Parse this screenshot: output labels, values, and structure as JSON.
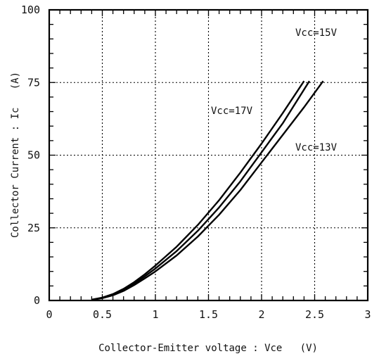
{
  "chart_data": {
    "type": "line",
    "title": "",
    "xlabel": "Collector-Emitter voltage : Vce   (V)",
    "ylabel": "Collector Current : Ic   (A)",
    "xlim": [
      0,
      3
    ],
    "ylim": [
      0,
      100
    ],
    "x_ticks": [
      "0",
      "0.5",
      "1",
      "1.5",
      "2",
      "2.5",
      "3"
    ],
    "y_ticks": [
      "0",
      "25",
      "50",
      "75",
      "100"
    ],
    "grid": true,
    "series": [
      {
        "name": "Vcc=17V",
        "x": [
          0.4,
          0.5,
          0.6,
          0.7,
          0.8,
          0.9,
          1.0,
          1.2,
          1.4,
          1.6,
          1.8,
          2.0,
          2.2,
          2.4
        ],
        "y": [
          0.3,
          1.0,
          2.2,
          4.0,
          6.3,
          9.0,
          12.0,
          18.5,
          26.0,
          34.5,
          44.0,
          54.0,
          64.5,
          75.5
        ]
      },
      {
        "name": "Vcc=15V",
        "x": [
          0.4,
          0.5,
          0.6,
          0.7,
          0.8,
          0.9,
          1.0,
          1.2,
          1.4,
          1.6,
          1.8,
          2.0,
          2.2,
          2.45
        ],
        "y": [
          0.2,
          0.9,
          2.0,
          3.6,
          5.8,
          8.3,
          11.0,
          17.0,
          24.0,
          32.0,
          41.0,
          51.0,
          61.0,
          75.5
        ]
      },
      {
        "name": "Vcc=13V",
        "x": [
          0.4,
          0.5,
          0.6,
          0.7,
          0.8,
          0.9,
          1.0,
          1.2,
          1.4,
          1.6,
          1.8,
          2.0,
          2.2,
          2.4,
          2.58
        ],
        "y": [
          0.2,
          0.8,
          1.8,
          3.3,
          5.3,
          7.6,
          10.0,
          15.5,
          22.0,
          29.5,
          38.0,
          47.5,
          57.0,
          66.5,
          75.5
        ]
      }
    ]
  }
}
